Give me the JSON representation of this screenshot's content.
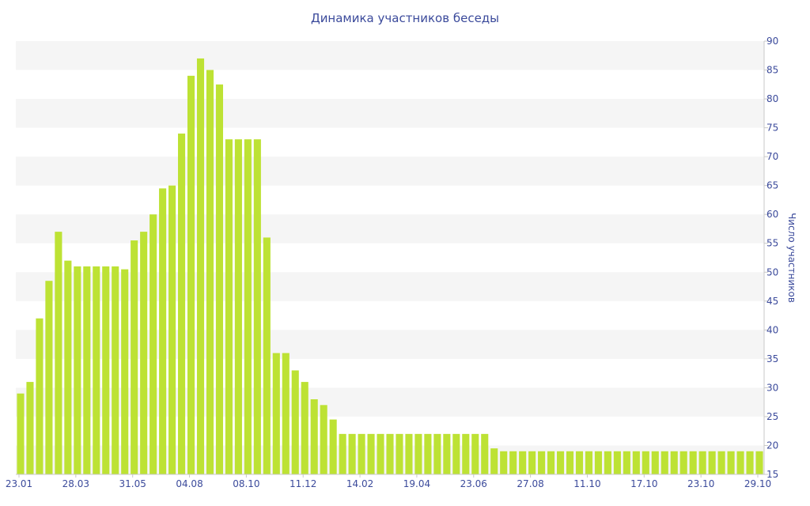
{
  "chart_data": {
    "type": "bar",
    "title": "Динамика участников беседы",
    "xlabel": "",
    "ylabel": "Число участников",
    "ylim": [
      15,
      90
    ],
    "yticks": [
      15,
      20,
      25,
      30,
      35,
      40,
      45,
      50,
      55,
      60,
      65,
      70,
      75,
      80,
      85,
      90
    ],
    "y_axis_position": "right",
    "x_tick_labels": [
      "23.01",
      "28.03",
      "31.05",
      "04.08",
      "08.10",
      "11.12",
      "14.02",
      "19.04",
      "23.06",
      "27.08",
      "11.10",
      "17.10",
      "23.10",
      "29.10"
    ],
    "grid": "alternating horizontal bands",
    "colors": {
      "bar": "#bde234",
      "axis_text": "#3b4a9b",
      "band": "#f5f5f5"
    },
    "values": [
      29,
      31,
      42,
      48.5,
      57,
      52,
      51,
      51,
      51,
      51,
      51,
      50.5,
      55.5,
      57,
      60,
      64.5,
      65,
      74,
      84,
      87,
      85,
      82.5,
      73,
      73,
      73,
      73,
      56,
      36,
      36,
      33,
      31,
      28,
      27,
      24.5,
      22,
      22,
      22,
      22,
      22,
      22,
      22,
      22,
      22,
      22,
      22,
      22,
      22,
      22,
      22,
      22,
      19.5,
      19,
      19,
      19,
      19,
      19,
      19,
      19,
      19,
      19,
      19,
      19,
      19,
      19,
      19,
      19,
      19,
      19,
      19,
      19,
      19,
      19,
      19,
      19,
      19,
      19,
      19,
      19,
      19
    ]
  }
}
